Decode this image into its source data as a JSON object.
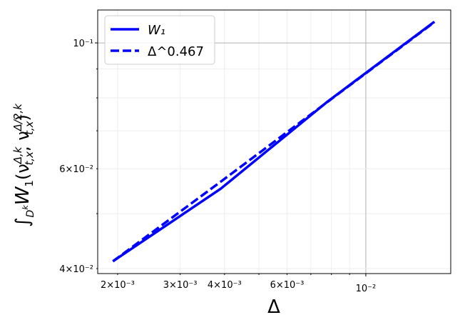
{
  "chart_data": {
    "type": "line",
    "log_x": true,
    "log_y": true,
    "grid": true,
    "xlabel": "Δ",
    "ylabel": [
      "∫",
      "D",
      "k",
      "W",
      "1",
      "(ν",
      "Δ,k",
      "t,x",
      ", ν",
      "Δ/2,k",
      "t,x",
      ")"
    ],
    "x": [
      0.00194,
      0.0039,
      0.0078,
      0.0156
    ],
    "series": [
      {
        "name": "W₁",
        "color": "#0000ff",
        "dash": false,
        "values": [
          0.0412,
          0.0553,
          0.0788,
          0.109
        ]
      },
      {
        "name": "Δ^0.467",
        "color": "#0000ff",
        "dash": true,
        "values": [
          0.0412,
          0.0569,
          0.0787,
          0.1088
        ]
      }
    ],
    "xlim": [
      0.001758,
      0.01734
    ],
    "ylim": [
      0.0392,
      0.1143
    ],
    "xticks": [
      {
        "value": 0.002,
        "label": "2×10⁻³"
      },
      {
        "value": 0.003,
        "label": "3×10⁻³"
      },
      {
        "value": 0.004,
        "label": "4×10⁻³"
      },
      {
        "value": 0.006,
        "label": "6×10⁻³"
      },
      {
        "value": 0.01,
        "label": "10⁻²"
      }
    ],
    "yticks": [
      {
        "value": 0.04,
        "label": "4×10⁻²"
      },
      {
        "value": 0.06,
        "label": "6×10⁻²"
      },
      {
        "value": 0.1,
        "label": "10⁻¹"
      }
    ],
    "xminorticks": [
      0.005,
      0.007,
      0.008,
      0.009
    ],
    "yminorticks": [
      0.05,
      0.07,
      0.08,
      0.09
    ],
    "legend": "upper left"
  }
}
